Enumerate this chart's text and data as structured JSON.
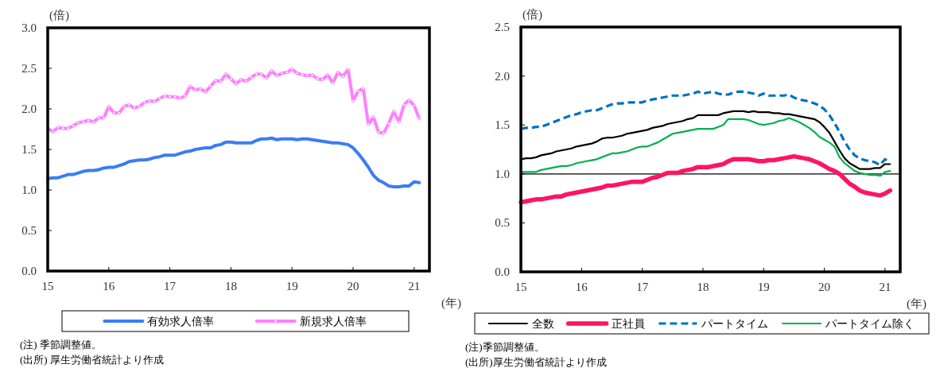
{
  "chart_data": [
    {
      "type": "line",
      "ylabel": "(倍)",
      "xlabel": "(年)",
      "legend": "bottom",
      "x": [
        "2015-01",
        "2015-02",
        "2015-03",
        "2015-04",
        "2015-05",
        "2015-06",
        "2015-07",
        "2015-08",
        "2015-09",
        "2015-10",
        "2015-11",
        "2015-12",
        "2016-01",
        "2016-02",
        "2016-03",
        "2016-04",
        "2016-05",
        "2016-06",
        "2016-07",
        "2016-08",
        "2016-09",
        "2016-10",
        "2016-11",
        "2016-12",
        "2017-01",
        "2017-02",
        "2017-03",
        "2017-04",
        "2017-05",
        "2017-06",
        "2017-07",
        "2017-08",
        "2017-09",
        "2017-10",
        "2017-11",
        "2017-12",
        "2018-01",
        "2018-02",
        "2018-03",
        "2018-04",
        "2018-05",
        "2018-06",
        "2018-07",
        "2018-08",
        "2018-09",
        "2018-10",
        "2018-11",
        "2018-12",
        "2019-01",
        "2019-02",
        "2019-03",
        "2019-04",
        "2019-05",
        "2019-06",
        "2019-07",
        "2019-08",
        "2019-09",
        "2019-10",
        "2019-11",
        "2019-12",
        "2020-01",
        "2020-02",
        "2020-03",
        "2020-04",
        "2020-05",
        "2020-06",
        "2020-07",
        "2020-08",
        "2020-09",
        "2020-10",
        "2020-11",
        "2020-12",
        "2021-01",
        "2021-02"
      ],
      "xlim": [
        "2015-01",
        "2021-04"
      ],
      "xticks": [
        {
          "value": "2015-01",
          "label": "15"
        },
        {
          "value": "2016-01",
          "label": "16"
        },
        {
          "value": "2017-01",
          "label": "17"
        },
        {
          "value": "2018-01",
          "label": "18"
        },
        {
          "value": "2019-01",
          "label": "19"
        },
        {
          "value": "2020-01",
          "label": "20"
        },
        {
          "value": "2021-01",
          "label": "21"
        }
      ],
      "ylim": [
        0,
        3
      ],
      "yticks": [
        {
          "value": 0,
          "label": "0.0"
        },
        {
          "value": 0.5,
          "label": "0.5"
        },
        {
          "value": 1,
          "label": "1.0"
        },
        {
          "value": 1.5,
          "label": "1.5"
        },
        {
          "value": 2,
          "label": "2.0"
        },
        {
          "value": 2.5,
          "label": "2.5"
        },
        {
          "value": 3,
          "label": "3.0"
        }
      ],
      "series": [
        {
          "name": "有効求人倍率",
          "color": "#3a7cf5",
          "line_style": "solid",
          "values": [
            1.14,
            1.15,
            1.15,
            1.17,
            1.19,
            1.19,
            1.21,
            1.23,
            1.24,
            1.24,
            1.25,
            1.27,
            1.28,
            1.28,
            1.3,
            1.32,
            1.35,
            1.36,
            1.37,
            1.37,
            1.38,
            1.4,
            1.41,
            1.43,
            1.43,
            1.43,
            1.45,
            1.47,
            1.48,
            1.5,
            1.51,
            1.52,
            1.52,
            1.55,
            1.56,
            1.59,
            1.59,
            1.58,
            1.58,
            1.58,
            1.58,
            1.61,
            1.63,
            1.63,
            1.64,
            1.62,
            1.63,
            1.63,
            1.63,
            1.62,
            1.63,
            1.63,
            1.62,
            1.61,
            1.6,
            1.59,
            1.58,
            1.58,
            1.57,
            1.56,
            1.52,
            1.45,
            1.37,
            1.28,
            1.18,
            1.12,
            1.09,
            1.05,
            1.04,
            1.04,
            1.05,
            1.05,
            1.1,
            1.09
          ]
        },
        {
          "name": "新規求人倍率",
          "color": "#ff80ff",
          "line_style": "solid",
          "marker": "circle",
          "values": [
            1.76,
            1.72,
            1.77,
            1.76,
            1.76,
            1.79,
            1.83,
            1.84,
            1.86,
            1.84,
            1.89,
            1.89,
            2.03,
            1.95,
            1.95,
            2.03,
            2.05,
            2.01,
            2.03,
            2.08,
            2.1,
            2.09,
            2.13,
            2.16,
            2.15,
            2.15,
            2.13,
            2.16,
            2.28,
            2.23,
            2.25,
            2.21,
            2.28,
            2.35,
            2.34,
            2.43,
            2.37,
            2.31,
            2.36,
            2.34,
            2.39,
            2.43,
            2.43,
            2.38,
            2.47,
            2.41,
            2.44,
            2.45,
            2.49,
            2.44,
            2.42,
            2.41,
            2.42,
            2.37,
            2.36,
            2.42,
            2.32,
            2.45,
            2.4,
            2.49,
            2.1,
            2.22,
            2.25,
            1.81,
            1.9,
            1.71,
            1.7,
            1.82,
            1.97,
            1.84,
            2.05,
            2.11,
            2.04,
            1.88
          ]
        }
      ],
      "annotations": [
        "(注) 季節調整値。",
        "(出所) 厚生労働省統計より作成"
      ]
    },
    {
      "type": "line",
      "ylabel": "(倍)",
      "xlabel": "(年)",
      "legend": "bottom",
      "x": [
        "2015-01",
        "2015-02",
        "2015-03",
        "2015-04",
        "2015-05",
        "2015-06",
        "2015-07",
        "2015-08",
        "2015-09",
        "2015-10",
        "2015-11",
        "2015-12",
        "2016-01",
        "2016-02",
        "2016-03",
        "2016-04",
        "2016-05",
        "2016-06",
        "2016-07",
        "2016-08",
        "2016-09",
        "2016-10",
        "2016-11",
        "2016-12",
        "2017-01",
        "2017-02",
        "2017-03",
        "2017-04",
        "2017-05",
        "2017-06",
        "2017-07",
        "2017-08",
        "2017-09",
        "2017-10",
        "2017-11",
        "2017-12",
        "2018-01",
        "2018-02",
        "2018-03",
        "2018-04",
        "2018-05",
        "2018-06",
        "2018-07",
        "2018-08",
        "2018-09",
        "2018-10",
        "2018-11",
        "2018-12",
        "2019-01",
        "2019-02",
        "2019-03",
        "2019-04",
        "2019-05",
        "2019-06",
        "2019-07",
        "2019-08",
        "2019-09",
        "2019-10",
        "2019-11",
        "2019-12",
        "2020-01",
        "2020-02",
        "2020-03",
        "2020-04",
        "2020-05",
        "2020-06",
        "2020-07",
        "2020-08",
        "2020-09",
        "2020-10",
        "2020-11",
        "2020-12",
        "2021-01",
        "2021-02"
      ],
      "xlim": [
        "2015-01",
        "2021-04"
      ],
      "xticks": [
        {
          "value": "2015-01",
          "label": "15"
        },
        {
          "value": "2016-01",
          "label": "16"
        },
        {
          "value": "2017-01",
          "label": "17"
        },
        {
          "value": "2018-01",
          "label": "18"
        },
        {
          "value": "2019-01",
          "label": "19"
        },
        {
          "value": "2020-01",
          "label": "20"
        },
        {
          "value": "2021-01",
          "label": "21"
        }
      ],
      "ylim": [
        0,
        2.5
      ],
      "yticks": [
        {
          "value": 0,
          "label": "0.0"
        },
        {
          "value": 0.5,
          "label": "0.5"
        },
        {
          "value": 1,
          "label": "1.0"
        },
        {
          "value": 1.5,
          "label": "1.5"
        },
        {
          "value": 2,
          "label": "2.0"
        },
        {
          "value": 2.5,
          "label": "2.5"
        }
      ],
      "ref_lines": [
        {
          "axis": "y",
          "value": 1,
          "color": "#000000"
        }
      ],
      "series": [
        {
          "name": "全数",
          "color": "#000000",
          "line_style": "solid",
          "values": [
            1.15,
            1.16,
            1.16,
            1.17,
            1.19,
            1.2,
            1.21,
            1.23,
            1.24,
            1.25,
            1.26,
            1.28,
            1.29,
            1.3,
            1.31,
            1.33,
            1.36,
            1.37,
            1.37,
            1.38,
            1.39,
            1.41,
            1.42,
            1.43,
            1.44,
            1.45,
            1.47,
            1.48,
            1.49,
            1.51,
            1.52,
            1.53,
            1.54,
            1.56,
            1.57,
            1.6,
            1.6,
            1.6,
            1.6,
            1.6,
            1.62,
            1.63,
            1.64,
            1.64,
            1.64,
            1.63,
            1.64,
            1.63,
            1.63,
            1.63,
            1.62,
            1.62,
            1.61,
            1.61,
            1.6,
            1.59,
            1.58,
            1.57,
            1.56,
            1.53,
            1.48,
            1.42,
            1.33,
            1.24,
            1.16,
            1.11,
            1.08,
            1.05,
            1.05,
            1.05,
            1.06,
            1.06,
            1.1,
            1.1
          ]
        },
        {
          "name": "正社員",
          "color": "#ff1464",
          "line_style": "solid",
          "values": [
            0.71,
            0.72,
            0.73,
            0.74,
            0.74,
            0.75,
            0.76,
            0.77,
            0.77,
            0.79,
            0.8,
            0.81,
            0.82,
            0.83,
            0.84,
            0.85,
            0.86,
            0.88,
            0.88,
            0.89,
            0.9,
            0.91,
            0.92,
            0.92,
            0.92,
            0.94,
            0.96,
            0.97,
            0.99,
            1.01,
            1.01,
            1.01,
            1.03,
            1.04,
            1.05,
            1.07,
            1.07,
            1.07,
            1.08,
            1.09,
            1.1,
            1.13,
            1.15,
            1.15,
            1.15,
            1.15,
            1.14,
            1.13,
            1.13,
            1.14,
            1.14,
            1.15,
            1.16,
            1.17,
            1.18,
            1.17,
            1.16,
            1.15,
            1.13,
            1.11,
            1.08,
            1.05,
            1.03,
            1.0,
            0.95,
            0.9,
            0.87,
            0.83,
            0.81,
            0.8,
            0.79,
            0.78,
            0.8,
            0.83
          ]
        },
        {
          "name": "パートタイム",
          "color": "#0070c0",
          "line_style": "dashed",
          "values": [
            1.46,
            1.47,
            1.47,
            1.48,
            1.48,
            1.5,
            1.52,
            1.54,
            1.56,
            1.58,
            1.6,
            1.61,
            1.63,
            1.64,
            1.65,
            1.65,
            1.67,
            1.69,
            1.71,
            1.72,
            1.72,
            1.73,
            1.73,
            1.73,
            1.73,
            1.75,
            1.76,
            1.77,
            1.78,
            1.79,
            1.8,
            1.8,
            1.8,
            1.81,
            1.82,
            1.84,
            1.82,
            1.83,
            1.84,
            1.82,
            1.81,
            1.81,
            1.83,
            1.84,
            1.84,
            1.83,
            1.82,
            1.8,
            1.82,
            1.8,
            1.8,
            1.8,
            1.8,
            1.81,
            1.78,
            1.76,
            1.75,
            1.74,
            1.72,
            1.7,
            1.66,
            1.6,
            1.52,
            1.43,
            1.33,
            1.25,
            1.19,
            1.16,
            1.14,
            1.13,
            1.12,
            1.09,
            1.15,
            1.12
          ]
        },
        {
          "name": "パートタイム除く",
          "color": "#00b050",
          "line_style": "solid",
          "values": [
            1.02,
            1.02,
            1.02,
            1.02,
            1.04,
            1.05,
            1.06,
            1.07,
            1.08,
            1.08,
            1.09,
            1.11,
            1.12,
            1.13,
            1.14,
            1.15,
            1.17,
            1.19,
            1.21,
            1.21,
            1.22,
            1.23,
            1.25,
            1.27,
            1.28,
            1.28,
            1.3,
            1.32,
            1.35,
            1.38,
            1.41,
            1.42,
            1.43,
            1.44,
            1.45,
            1.46,
            1.46,
            1.46,
            1.46,
            1.48,
            1.5,
            1.56,
            1.56,
            1.56,
            1.56,
            1.55,
            1.53,
            1.51,
            1.5,
            1.51,
            1.52,
            1.54,
            1.55,
            1.57,
            1.55,
            1.53,
            1.5,
            1.47,
            1.43,
            1.38,
            1.35,
            1.32,
            1.28,
            1.17,
            1.11,
            1.07,
            1.03,
            1.01,
            1.0,
            0.99,
            0.99,
            0.98,
            1.02,
            1.03
          ]
        }
      ],
      "annotations": [
        "(注)季節調整値。",
        "(出所)厚生労働省統計より作成"
      ]
    }
  ]
}
